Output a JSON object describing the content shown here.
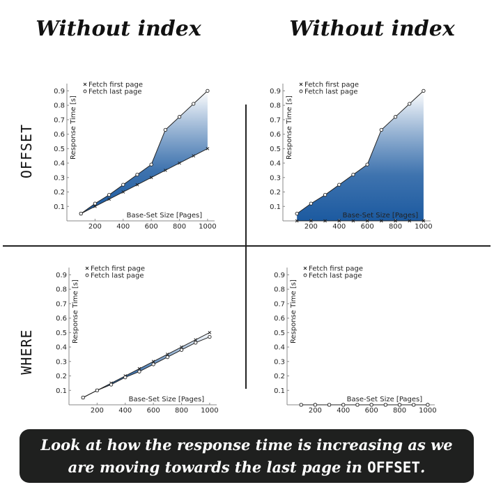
{
  "headers": {
    "col_left": "Without index",
    "col_right": "Without index",
    "row_top": "OFFSET",
    "row_bottom": "WHERE"
  },
  "caption": {
    "line1": "Look at how the response time is increasing as we",
    "line2_prefix": "are moving towards the last page in ",
    "line2_keyword": "OFFSET",
    "line2_suffix": "."
  },
  "colors": {
    "fill_dark": "#1c5aa0",
    "fill_light": "#ffffff",
    "line": "#222222",
    "caption_bg": "#1f201f"
  },
  "chart_data": [
    {
      "type": "line",
      "id": "chart-offset-left",
      "xlabel": "Base-Set Size [Pages]",
      "ylabel": "Response Time [s]",
      "xlim": [
        0,
        1050
      ],
      "ylim": [
        0,
        0.95
      ],
      "xticks": [
        200,
        400,
        600,
        800,
        1000
      ],
      "yticks": [
        0.1,
        0.2,
        0.3,
        0.4,
        0.5,
        0.6,
        0.7,
        0.8,
        0.9
      ],
      "legend": "top-left",
      "fill_between": true,
      "x": [
        100,
        200,
        300,
        400,
        500,
        600,
        700,
        800,
        900,
        1000
      ],
      "series": [
        {
          "name": "Fetch first page",
          "marker": "x",
          "values": [
            0.05,
            0.1,
            0.15,
            0.2,
            0.25,
            0.3,
            0.35,
            0.4,
            0.45,
            0.5
          ]
        },
        {
          "name": "Fetch last page",
          "marker": "o",
          "values": [
            0.05,
            0.12,
            0.18,
            0.25,
            0.32,
            0.39,
            0.63,
            0.72,
            0.81,
            0.9
          ]
        }
      ]
    },
    {
      "type": "line",
      "id": "chart-offset-right",
      "xlabel": "Base-Set Size [Pages]",
      "ylabel": "Response Time [s]",
      "xlim": [
        0,
        1050
      ],
      "ylim": [
        0,
        0.95
      ],
      "xticks": [
        200,
        400,
        600,
        800,
        1000
      ],
      "yticks": [
        0.1,
        0.2,
        0.3,
        0.4,
        0.5,
        0.6,
        0.7,
        0.8,
        0.9
      ],
      "legend": "top-left",
      "fill_between": true,
      "x": [
        100,
        200,
        300,
        400,
        500,
        600,
        700,
        800,
        900,
        1000
      ],
      "series": [
        {
          "name": "Fetch first page",
          "marker": "x",
          "values": [
            0,
            0,
            0,
            0,
            0,
            0,
            0,
            0,
            0,
            0
          ]
        },
        {
          "name": "Fetch last page",
          "marker": "o",
          "values": [
            0.05,
            0.12,
            0.18,
            0.25,
            0.32,
            0.39,
            0.63,
            0.72,
            0.81,
            0.9
          ]
        }
      ]
    },
    {
      "type": "line",
      "id": "chart-where-left",
      "xlabel": "Base-Set Size [Pages]",
      "ylabel": "Response Time [s]",
      "xlim": [
        0,
        1050
      ],
      "ylim": [
        0,
        0.95
      ],
      "xticks": [
        200,
        400,
        600,
        800,
        1000
      ],
      "yticks": [
        0.1,
        0.2,
        0.3,
        0.4,
        0.5,
        0.6,
        0.7,
        0.8,
        0.9
      ],
      "legend": "top-left",
      "fill_between": true,
      "x": [
        100,
        200,
        300,
        400,
        500,
        600,
        700,
        800,
        900,
        1000
      ],
      "series": [
        {
          "name": "Fetch first page",
          "marker": "x",
          "values": [
            0.05,
            0.1,
            0.15,
            0.2,
            0.25,
            0.3,
            0.35,
            0.4,
            0.45,
            0.5
          ]
        },
        {
          "name": "Fetch last page",
          "marker": "o",
          "values": [
            0.05,
            0.1,
            0.14,
            0.19,
            0.23,
            0.28,
            0.33,
            0.38,
            0.43,
            0.47
          ]
        }
      ]
    },
    {
      "type": "line",
      "id": "chart-where-right",
      "xlabel": "Base-Set Size [Pages]",
      "ylabel": "Response Time [s]",
      "xlim": [
        0,
        1050
      ],
      "ylim": [
        0,
        0.95
      ],
      "xticks": [
        200,
        400,
        600,
        800,
        1000
      ],
      "yticks": [
        0.1,
        0.2,
        0.3,
        0.4,
        0.5,
        0.6,
        0.7,
        0.8,
        0.9
      ],
      "legend": "top-left",
      "fill_between": true,
      "x": [
        100,
        200,
        300,
        400,
        500,
        600,
        700,
        800,
        900,
        1000
      ],
      "series": [
        {
          "name": "Fetch first page",
          "marker": "x",
          "values": [
            0,
            0,
            0,
            0,
            0,
            0,
            0,
            0,
            0,
            0
          ]
        },
        {
          "name": "Fetch last page",
          "marker": "o",
          "values": [
            0,
            0,
            0,
            0,
            0,
            0,
            0,
            0,
            0,
            0
          ]
        }
      ]
    }
  ]
}
